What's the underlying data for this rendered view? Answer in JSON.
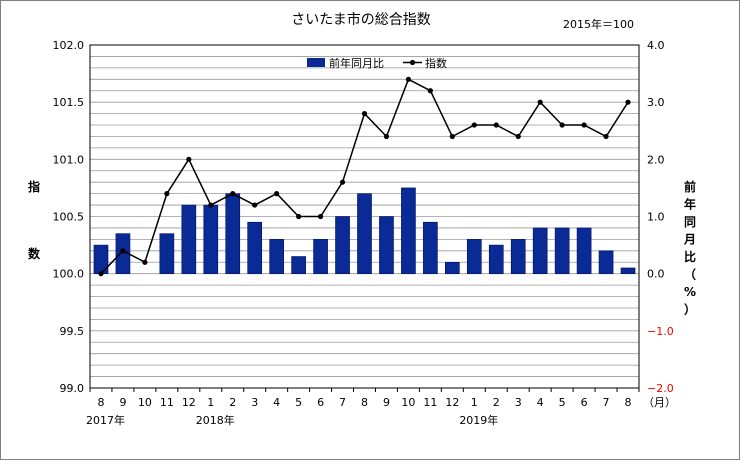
{
  "chart_data": {
    "type": "bar+line",
    "title": "さいたま市の総合指数",
    "base_note": "2015年＝100",
    "categories": [
      "8",
      "9",
      "10",
      "11",
      "12",
      "1",
      "2",
      "3",
      "4",
      "5",
      "6",
      "7",
      "8",
      "9",
      "10",
      "11",
      "12",
      "1",
      "2",
      "3",
      "4",
      "5",
      "6",
      "7",
      "8"
    ],
    "month_unit": "（月）",
    "year_labels": [
      {
        "label": "2017年",
        "index": 0
      },
      {
        "label": "2018年",
        "index": 5
      },
      {
        "label": "2019年",
        "index": 17
      }
    ],
    "left_axis": {
      "label_chars": [
        "指",
        "数"
      ],
      "ylim": [
        99.0,
        102.0
      ],
      "ticks": [
        "99.0",
        "99.5",
        "100.0",
        "100.5",
        "101.0",
        "101.5",
        "102.0"
      ]
    },
    "right_axis": {
      "label_chars": [
        "前",
        "年",
        "同",
        "月",
        "比",
        "（",
        "%",
        "）"
      ],
      "ylim": [
        -2.0,
        4.0
      ],
      "ticks": [
        "−2.0",
        "−1.0",
        "0.0",
        "1.0",
        "2.0",
        "3.0",
        "4.0"
      ],
      "tick_values": [
        -2.0,
        -1.0,
        0.0,
        1.0,
        2.0,
        3.0,
        4.0
      ],
      "negative_color": "#ff0000"
    },
    "series": [
      {
        "name": "前年同月比",
        "type": "bar",
        "axis": "right",
        "color": "#0a2a96",
        "values": [
          0.5,
          0.7,
          0.0,
          0.7,
          1.2,
          1.2,
          1.4,
          0.9,
          0.6,
          0.3,
          0.6,
          1.0,
          1.4,
          1.0,
          1.5,
          0.9,
          0.2,
          0.6,
          0.5,
          0.6,
          0.8,
          0.8,
          0.8,
          0.4,
          0.1
        ]
      },
      {
        "name": "指数",
        "type": "line",
        "axis": "left",
        "color": "#000000",
        "values": [
          100.0,
          100.2,
          100.1,
          100.7,
          101.0,
          100.6,
          100.7,
          100.6,
          100.7,
          100.5,
          100.5,
          100.8,
          101.4,
          101.2,
          101.7,
          101.6,
          101.2,
          101.3,
          101.3,
          101.2,
          101.5,
          101.3,
          101.3,
          101.2,
          101.5
        ]
      }
    ],
    "legend_position": "top-center",
    "grid": true
  }
}
